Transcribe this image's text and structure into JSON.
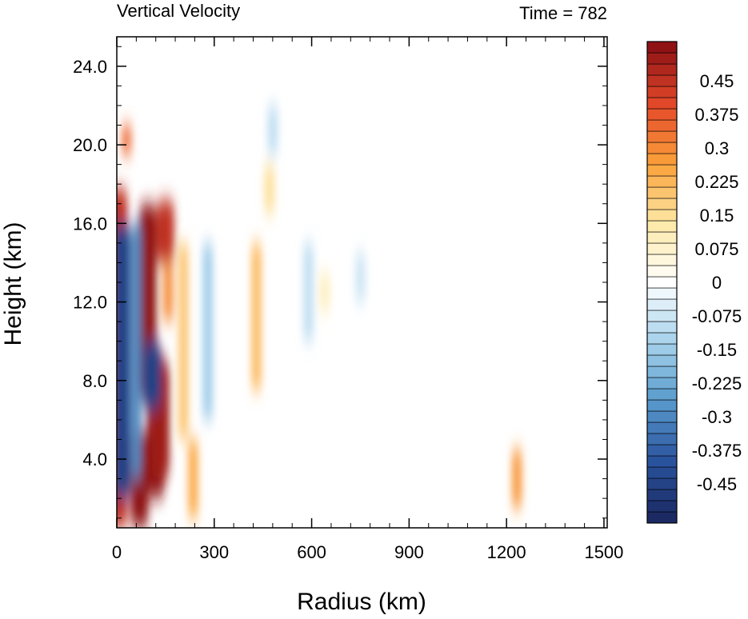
{
  "chart_data": {
    "type": "heatmap",
    "title_left": "Vertical Velocity",
    "title_right": "Time = 782",
    "xlabel": "Radius (km)",
    "ylabel": "Height (km)",
    "xlim": [
      0,
      1510
    ],
    "ylim": [
      0.5,
      25.5
    ],
    "x_ticks": [
      0,
      300,
      600,
      900,
      1200,
      1500
    ],
    "x_tick_labels": [
      "0",
      "300",
      "600",
      "900",
      "1200",
      "1500"
    ],
    "y_ticks": [
      4,
      8,
      12,
      16,
      20,
      24
    ],
    "y_tick_labels": [
      "4.0",
      "8.0",
      "12.0",
      "16.0",
      "20.0",
      "24.0"
    ],
    "colorbar": {
      "levels_min": -0.525,
      "levels_step": 0.025,
      "n_levels": 43,
      "labels": [
        "0.45",
        "0.375",
        "0.3",
        "0.225",
        "0.15",
        "0.075",
        "0",
        "-0.075",
        "-0.15",
        "-0.225",
        "-0.3",
        "-0.375",
        "-0.45"
      ],
      "label_values": [
        0.45,
        0.375,
        0.3,
        0.225,
        0.15,
        0.075,
        0,
        -0.075,
        -0.15,
        -0.225,
        -0.3,
        -0.375,
        -0.45
      ],
      "colormap": [
        "#1b2a63",
        "#2b55a0",
        "#5a9ccd",
        "#a8d3ec",
        "#ffffff",
        "#fde9a8",
        "#fba23b",
        "#e54a2a",
        "#8f1215"
      ]
    },
    "features": [
      {
        "x": 95,
        "y0": 7.0,
        "y1": 17.0,
        "v": 0.6
      },
      {
        "x": 150,
        "y0": 14.0,
        "y1": 17.2,
        "v": 0.45
      },
      {
        "x": 158,
        "y0": 11.0,
        "y1": 14.0,
        "v": 0.3
      },
      {
        "x": 120,
        "y0": 2.0,
        "y1": 9.5,
        "v": 0.55
      },
      {
        "x": 70,
        "y0": 0.5,
        "y1": 5.5,
        "v": 0.55
      },
      {
        "x": 135,
        "y0": 3.0,
        "y1": 9.0,
        "v": 0.5
      },
      {
        "x": 6,
        "y0": 0.5,
        "y1": 17.8,
        "v": 0.45
      },
      {
        "x": 15,
        "y0": 2.0,
        "y1": 16.0,
        "v": -0.45
      },
      {
        "x": 30,
        "y0": 19.5,
        "y1": 21.0,
        "v": 0.35
      },
      {
        "x": 60,
        "y0": 3.0,
        "y1": 16.0,
        "v": -0.3
      },
      {
        "x": 108,
        "y0": 6.5,
        "y1": 10.0,
        "v": -0.45
      },
      {
        "x": 205,
        "y0": 5.0,
        "y1": 15.0,
        "v": 0.2
      },
      {
        "x": 235,
        "y0": 1.0,
        "y1": 5.0,
        "v": 0.25
      },
      {
        "x": 280,
        "y0": 6.0,
        "y1": 15.0,
        "v": -0.15
      },
      {
        "x": 430,
        "y0": 7.5,
        "y1": 15.0,
        "v": 0.22
      },
      {
        "x": 470,
        "y0": 16.5,
        "y1": 19.0,
        "v": 0.15
      },
      {
        "x": 480,
        "y0": 19.5,
        "y1": 22.0,
        "v": -0.1
      },
      {
        "x": 590,
        "y0": 10.0,
        "y1": 15.0,
        "v": -0.1
      },
      {
        "x": 640,
        "y0": 11.5,
        "y1": 13.5,
        "v": 0.1
      },
      {
        "x": 750,
        "y0": 12.0,
        "y1": 14.5,
        "v": -0.08
      },
      {
        "x": 1232,
        "y0": 1.5,
        "y1": 4.5,
        "v": 0.28
      }
    ]
  }
}
